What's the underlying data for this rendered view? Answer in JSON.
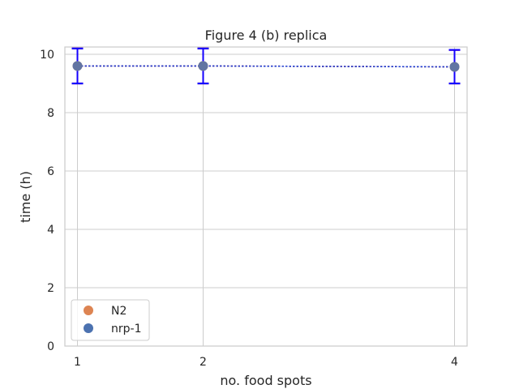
{
  "chart_data": {
    "type": "scatter",
    "title": "Figure 4 (b) replica",
    "xlabel": "no. food spots",
    "ylabel": "time (h)",
    "x": [
      1,
      2,
      4
    ],
    "xticks": [
      "1",
      "2",
      "4"
    ],
    "yticks": [
      "0",
      "2",
      "4",
      "6",
      "8",
      "10"
    ],
    "xlim": [
      0.9,
      4.1
    ],
    "ylim": [
      0,
      10.25
    ],
    "grid": true,
    "legend_position": "lower-left",
    "series": [
      {
        "name": "N2",
        "color": "#dd8452",
        "values": [
          9.6,
          9.6,
          9.57
        ],
        "error_low": [
          9.0,
          9.0,
          9.0
        ],
        "error_high": [
          10.2,
          10.2,
          10.15
        ],
        "line_color": "#e8453c",
        "errorbar_color": "#e8453c"
      },
      {
        "name": "nrp-1",
        "color": "#4c72b0",
        "values": [
          9.6,
          9.6,
          9.57
        ],
        "error_low": [
          9.0,
          9.0,
          9.0
        ],
        "error_high": [
          10.2,
          10.2,
          10.15
        ],
        "line_color": "#1f3ccf",
        "errorbar_color": "#1400ff"
      }
    ]
  }
}
